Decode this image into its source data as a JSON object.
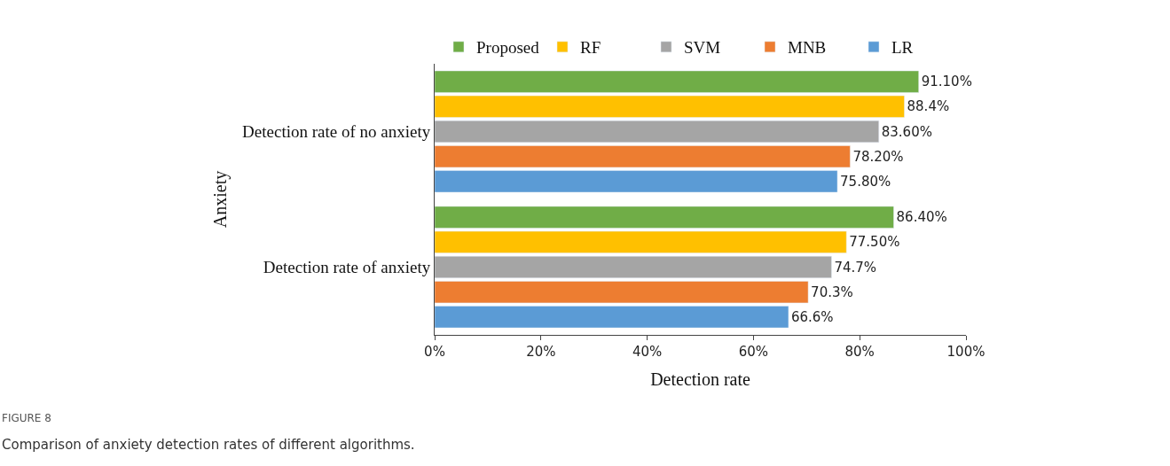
{
  "chart_data": {
    "type": "bar",
    "orientation": "horizontal",
    "categories": [
      "Detection rate of no anxiety",
      "Detection rate of anxiety"
    ],
    "series": [
      {
        "name": "Proposed",
        "color": "#70ad47",
        "values": [
          91.1,
          86.4
        ],
        "value_labels": [
          "91.10%",
          "86.40%"
        ]
      },
      {
        "name": "RF",
        "color": "#ffc000",
        "values": [
          88.4,
          77.5
        ],
        "value_labels": [
          "88.4%",
          "77.50%"
        ]
      },
      {
        "name": "SVM",
        "color": "#a5a5a5",
        "values": [
          83.6,
          74.7
        ],
        "value_labels": [
          "83.60%",
          "74.7%"
        ]
      },
      {
        "name": "MNB",
        "color": "#ed7d31",
        "values": [
          78.2,
          70.3
        ],
        "value_labels": [
          "78.20%",
          "70.3%"
        ]
      },
      {
        "name": "LR",
        "color": "#5b9bd5",
        "values": [
          75.8,
          66.6
        ],
        "value_labels": [
          "75.80%",
          "66.6%"
        ]
      }
    ],
    "xlim": [
      0,
      100
    ],
    "xticks": [
      {
        "value": 0,
        "label": "0%"
      },
      {
        "value": 20,
        "label": "20%"
      },
      {
        "value": 40,
        "label": "40%"
      },
      {
        "value": 60,
        "label": "60%"
      },
      {
        "value": 80,
        "label": "80%"
      },
      {
        "value": 100,
        "label": "100%"
      }
    ],
    "xlabel": "Detection rate",
    "ylabel": "Anxiety",
    "legend": "top",
    "annotations": [
      "FIGURE 8",
      "Comparison of anxiety detection rates of different algorithms."
    ]
  }
}
